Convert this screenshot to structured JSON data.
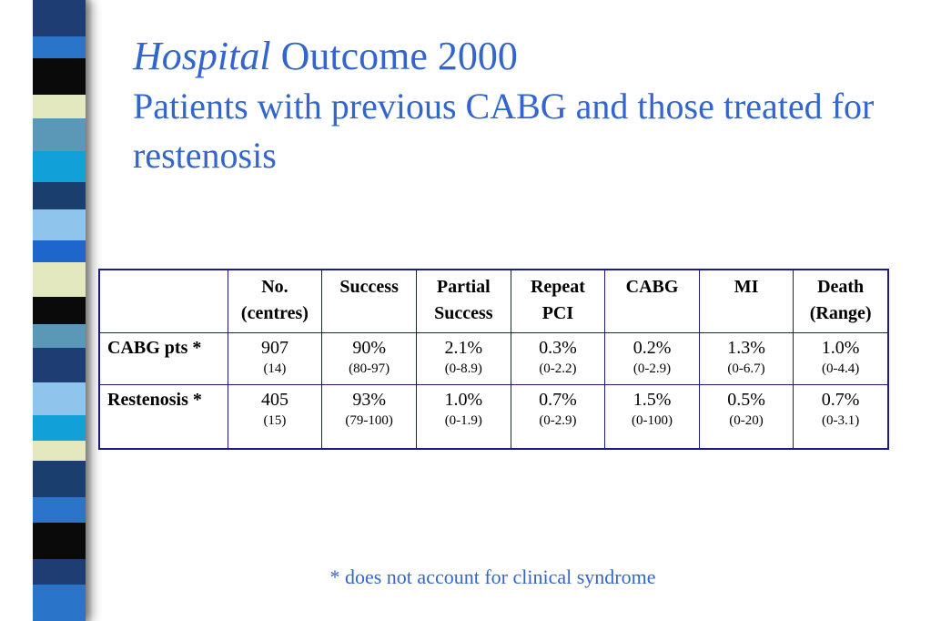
{
  "title": {
    "italic_part": "Hospital",
    "rest": " Outcome 2000",
    "subtitle": "Patients with previous CABG and those treated for restenosis"
  },
  "stripe_colors": [
    "#1e3d73",
    "#2a74c9",
    "#0a0a0a",
    "#e3e8bf",
    "#5b97b6",
    "#12a0d8",
    "#1a3f6e",
    "#8fc4ec",
    "#1e66cc",
    "#e3e8bf",
    "#0a0a0a",
    "#5b97b6",
    "#1e3d73",
    "#8fc4ec",
    "#12a0d8",
    "#e3e8bf",
    "#1a3f6e",
    "#2a74c9",
    "#0a0a0a"
  ],
  "table": {
    "headers": [
      {
        "line1": "",
        "line2": ""
      },
      {
        "line1": "No.",
        "line2": "(centres)"
      },
      {
        "line1": "Success",
        "line2": ""
      },
      {
        "line1": "Partial",
        "line2": "Success"
      },
      {
        "line1": "Repeat",
        "line2": "PCI"
      },
      {
        "line1": "CABG",
        "line2": ""
      },
      {
        "line1": "MI",
        "line2": ""
      },
      {
        "line1": "Death",
        "line2": "(Range)"
      }
    ],
    "rows": [
      {
        "label": "CABG pts *",
        "cells": [
          {
            "main": "907",
            "sub": "(14)"
          },
          {
            "main": "90%",
            "sub": "(80-97)"
          },
          {
            "main": "2.1%",
            "sub": "(0-8.9)"
          },
          {
            "main": "0.3%",
            "sub": "(0-2.2)"
          },
          {
            "main": "0.2%",
            "sub": "(0-2.9)"
          },
          {
            "main": "1.3%",
            "sub": "(0-6.7)"
          },
          {
            "main": "1.0%",
            "sub": "(0-4.4)"
          }
        ]
      },
      {
        "label": "Restenosis *",
        "cells": [
          {
            "main": "405",
            "sub": "(15)"
          },
          {
            "main": "93%",
            "sub": "(79-100)"
          },
          {
            "main": "1.0%",
            "sub": "(0-1.9)"
          },
          {
            "main": "0.7%",
            "sub": "(0-2.9)"
          },
          {
            "main": "1.5%",
            "sub": "(0-100)"
          },
          {
            "main": "0.5%",
            "sub": "(0-20)"
          },
          {
            "main": "0.7%",
            "sub": "(0-3.1)"
          }
        ]
      }
    ]
  },
  "footnote": "* does not account for clinical syndrome"
}
